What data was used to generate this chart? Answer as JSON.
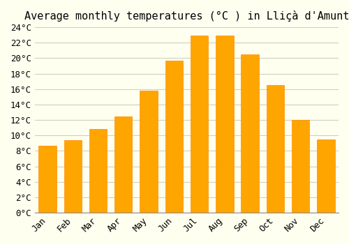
{
  "title": "Average monthly temperatures (°C ) in Lliçà d'Amunt",
  "months": [
    "Jan",
    "Feb",
    "Mar",
    "Apr",
    "May",
    "Jun",
    "Jul",
    "Aug",
    "Sep",
    "Oct",
    "Nov",
    "Dec"
  ],
  "values": [
    8.7,
    9.4,
    10.8,
    12.5,
    15.8,
    19.7,
    22.9,
    22.9,
    20.5,
    16.5,
    12.0,
    9.5
  ],
  "bar_color": "#FFA500",
  "bar_edge_color": "#FF8C00",
  "ylim": [
    0,
    24
  ],
  "ytick_step": 2,
  "background_color": "#FFFFF0",
  "grid_color": "#D0D0C0",
  "font_family": "monospace",
  "title_fontsize": 11,
  "tick_fontsize": 9
}
